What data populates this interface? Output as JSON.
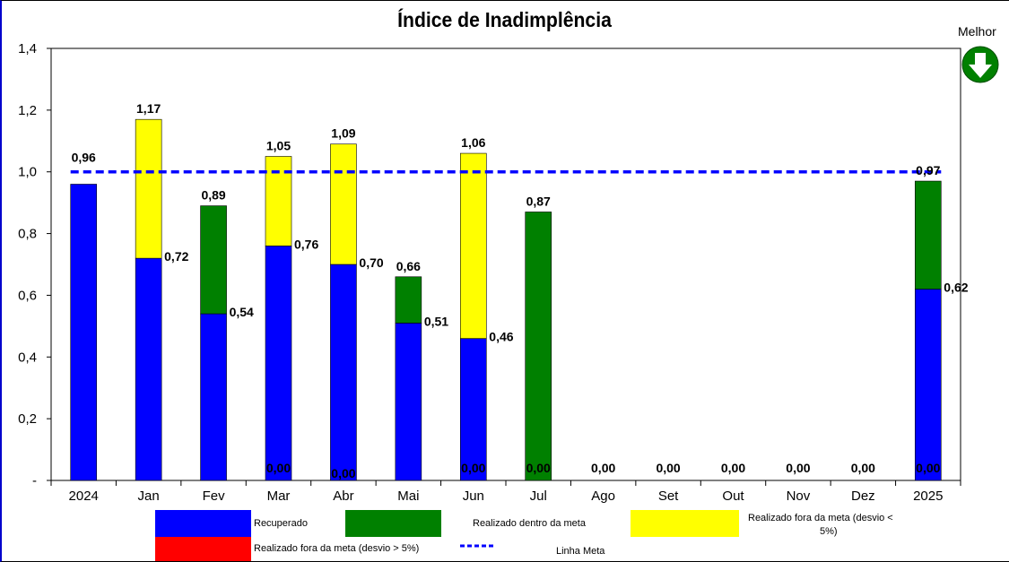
{
  "title": "Índice de Inadimplência",
  "badge": {
    "label": "Melhor",
    "icon": "arrow-down-icon",
    "color": "#008000"
  },
  "chart_data": {
    "type": "bar",
    "stacked": true,
    "categories": [
      "2024",
      "Jan",
      "Fev",
      "Mar",
      "Abr",
      "Mai",
      "Jun",
      "Jul",
      "Ago",
      "Set",
      "Out",
      "Nov",
      "Dez",
      "2025"
    ],
    "yticks": [
      "-",
      "0,2",
      "0,4",
      "0,6",
      "0,8",
      "1,0",
      "1,2",
      "1,4"
    ],
    "ylim": [
      0,
      1.4
    ],
    "series": [
      {
        "name": "Recuperado",
        "color": "#0000ff",
        "values": [
          0.96,
          0.72,
          0.54,
          0.76,
          0.7,
          0.51,
          0.46,
          0,
          0,
          0,
          0,
          0,
          0,
          0.62
        ]
      },
      {
        "name": "Realizado dentro da meta",
        "color": "#008000",
        "values": [
          0,
          0,
          0.35,
          0,
          0,
          0.15,
          0,
          0.87,
          0,
          0,
          0,
          0,
          0,
          0.35
        ]
      },
      {
        "name": "Realizado fora da meta (desvio < 5%)",
        "color": "#ffff00",
        "values": [
          0,
          0.45,
          0,
          0.29,
          0.39,
          0,
          0.6,
          0,
          0,
          0,
          0,
          0,
          0,
          0
        ]
      },
      {
        "name": "Realizado fora da meta (desvio > 5%)",
        "color": "#ff0000",
        "values": [
          0,
          0,
          0,
          0,
          0,
          0,
          0,
          0,
          0,
          0,
          0,
          0,
          0,
          0
        ]
      }
    ],
    "total_labels": [
      "0,96",
      "1,17",
      "0,89",
      "1,05",
      "1,09",
      "0,66",
      "1,06",
      "0,87",
      "0,00",
      "0,00",
      "0,00",
      "0,00",
      "0,00",
      "0,97"
    ],
    "mid_labels": [
      "",
      "0,72",
      "0,54",
      "0,76",
      "0,70",
      "0,51",
      "0,46",
      "",
      "",
      "",
      "",
      "",
      "",
      "0,62"
    ],
    "base_labels": [
      "",
      "",
      "",
      "0,00",
      "0,00",
      "",
      "0,00",
      "0,00",
      "",
      "",
      "",
      "",
      "",
      "0,00"
    ],
    "meta_line": {
      "name": "Linha Meta",
      "value": 1.0,
      "color": "#0000ff",
      "style": "dashed"
    },
    "legend_position": "bottom"
  }
}
